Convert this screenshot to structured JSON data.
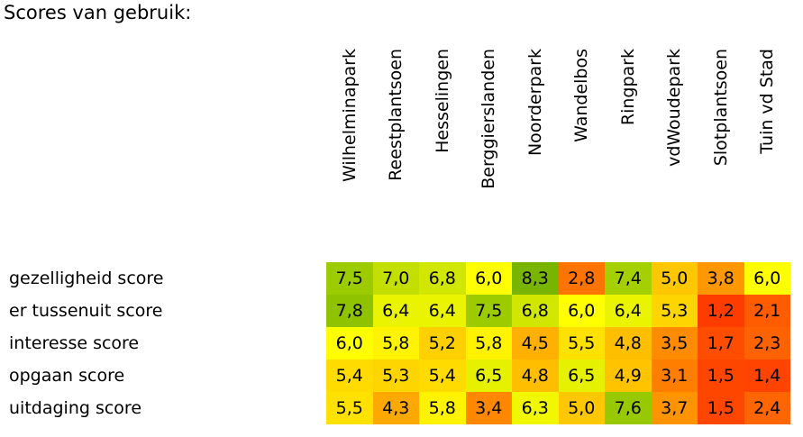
{
  "chart_data": {
    "type": "heatmap",
    "title": "Scores van gebruik:",
    "columns": [
      "Wilhelminapark",
      "Reestplantsoen",
      "Hesselingen",
      "Berggierslanden",
      "Noorderpark",
      "Wandelbos",
      "Ringpark",
      "vdWoudepark",
      "Slotplantsoen",
      "Tuin vd Stad"
    ],
    "rows": [
      {
        "label": "gezelligheid score",
        "values": [
          "7,5",
          "7,0",
          "6,8",
          "6,0",
          "8,3",
          "2,8",
          "7,4",
          "5,0",
          "3,8",
          "6,0"
        ]
      },
      {
        "label": "er tussenuit score",
        "values": [
          "7,8",
          "6,4",
          "6,4",
          "7,5",
          "6,8",
          "6,0",
          "6,4",
          "5,3",
          "1,2",
          "2,1"
        ]
      },
      {
        "label": "interesse score",
        "values": [
          "6,0",
          "5,8",
          "5,2",
          "5,8",
          "4,5",
          "5,5",
          "4,8",
          "3,5",
          "1,7",
          "2,3"
        ]
      },
      {
        "label": "opgaan score",
        "values": [
          "5,4",
          "5,3",
          "5,4",
          "6,5",
          "4,8",
          "6,5",
          "4,9",
          "3,1",
          "1,5",
          "1,4"
        ]
      },
      {
        "label": "uitdaging score",
        "values": [
          "5,5",
          "4,3",
          "5,8",
          "3,4",
          "6,3",
          "5,0",
          "7,6",
          "3,7",
          "1,5",
          "2,4"
        ]
      }
    ],
    "color_scale": [
      {
        "value": 1.2,
        "color": "#ff3c00"
      },
      {
        "value": 3.0,
        "color": "#ff7a00"
      },
      {
        "value": 4.5,
        "color": "#ffb000"
      },
      {
        "value": 5.3,
        "color": "#ffd500"
      },
      {
        "value": 6.0,
        "color": "#ffff00"
      },
      {
        "value": 6.6,
        "color": "#e0ee00"
      },
      {
        "value": 7.5,
        "color": "#9ccc00"
      },
      {
        "value": 8.3,
        "color": "#78b400"
      }
    ]
  }
}
